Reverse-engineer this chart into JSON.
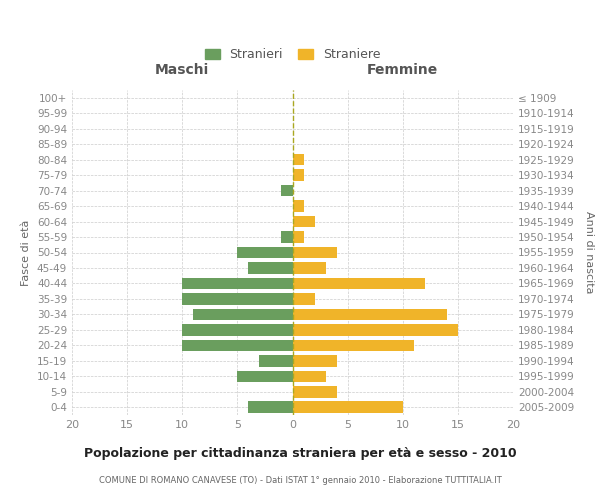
{
  "age_groups": [
    "0-4",
    "5-9",
    "10-14",
    "15-19",
    "20-24",
    "25-29",
    "30-34",
    "35-39",
    "40-44",
    "45-49",
    "50-54",
    "55-59",
    "60-64",
    "65-69",
    "70-74",
    "75-79",
    "80-84",
    "85-89",
    "90-94",
    "95-99",
    "100+"
  ],
  "birth_years": [
    "2005-2009",
    "2000-2004",
    "1995-1999",
    "1990-1994",
    "1985-1989",
    "1980-1984",
    "1975-1979",
    "1970-1974",
    "1965-1969",
    "1960-1964",
    "1955-1959",
    "1950-1954",
    "1945-1949",
    "1940-1944",
    "1935-1939",
    "1930-1934",
    "1925-1929",
    "1920-1924",
    "1915-1919",
    "1910-1914",
    "≤ 1909"
  ],
  "maschi": [
    4,
    0,
    5,
    3,
    10,
    10,
    9,
    10,
    10,
    4,
    5,
    1,
    0,
    0,
    1,
    0,
    0,
    0,
    0,
    0,
    0
  ],
  "femmine": [
    10,
    4,
    3,
    4,
    11,
    15,
    14,
    2,
    12,
    3,
    4,
    1,
    2,
    1,
    0,
    1,
    1,
    0,
    0,
    0,
    0
  ],
  "color_maschi": "#6a9e5e",
  "color_femmine": "#f0b429",
  "title": "Popolazione per cittadinanza straniera per età e sesso - 2010",
  "subtitle": "COMUNE DI ROMANO CANAVESE (TO) - Dati ISTAT 1° gennaio 2010 - Elaborazione TUTTITALIA.IT",
  "label_maschi": "Maschi",
  "label_femmine": "Femmine",
  "ylabel_left": "Fasce di età",
  "ylabel_right": "Anni di nascita",
  "legend_maschi": "Stranieri",
  "legend_femmine": "Straniere",
  "xlim": 20,
  "background_color": "#ffffff",
  "grid_color": "#cccccc"
}
